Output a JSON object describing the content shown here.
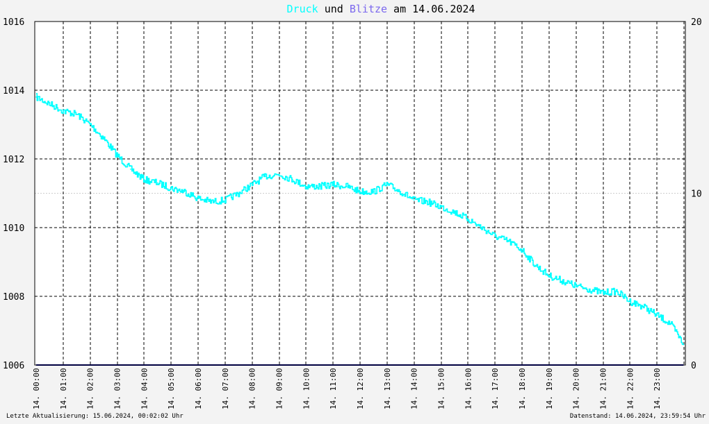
{
  "title": {
    "part1": "Druck",
    "part2": " und ",
    "part3": "Blitze",
    "part4": " am 14.06.2024",
    "color_druck": "#00ffff",
    "color_blitze": "#7b68ee",
    "color_text": "#000000"
  },
  "footer": {
    "left": "Letzte Aktualisierung: 15.06.2024, 00:02:02 Uhr",
    "right": "Datenstand: 14.06.2024, 23:59:54 Uhr"
  },
  "chart_data": {
    "type": "line",
    "title": "Druck und Blitze am 14.06.2024",
    "xlabel": "",
    "ylabel": "",
    "y_left": {
      "min": 1006,
      "max": 1016,
      "ticks": [
        "1006",
        "1008",
        "1010",
        "1012",
        "1014",
        "1016"
      ]
    },
    "y_right": {
      "min": 0,
      "max": 20,
      "ticks": [
        "0",
        "10",
        "20"
      ]
    },
    "x_ticks": [
      "14. 00:00",
      "14. 01:00",
      "14. 02:00",
      "14. 03:00",
      "14. 04:00",
      "14. 05:00",
      "14. 06:00",
      "14. 07:00",
      "14. 08:00",
      "14. 09:00",
      "14. 10:00",
      "14. 11:00",
      "14. 12:00",
      "14. 13:00",
      "14. 14:00",
      "14. 15:00",
      "14. 16:00",
      "14. 17:00",
      "14. 18:00",
      "14. 19:00",
      "14. 20:00",
      "14. 21:00",
      "14. 22:00",
      "14. 23:00"
    ],
    "grid": true,
    "series": [
      {
        "name": "Druck",
        "axis": "left",
        "color": "#00ffff",
        "x": [
          "00:00",
          "00:30",
          "01:00",
          "01:30",
          "02:00",
          "02:30",
          "03:00",
          "03:30",
          "04:00",
          "04:30",
          "05:00",
          "05:30",
          "06:00",
          "06:30",
          "07:00",
          "07:30",
          "08:00",
          "08:30",
          "09:00",
          "09:30",
          "10:00",
          "10:30",
          "11:00",
          "11:30",
          "12:00",
          "12:30",
          "13:00",
          "13:30",
          "14:00",
          "14:30",
          "15:00",
          "15:30",
          "16:00",
          "16:30",
          "17:00",
          "17:30",
          "18:00",
          "18:30",
          "19:00",
          "19:30",
          "20:00",
          "20:30",
          "21:00",
          "21:30",
          "22:00",
          "22:30",
          "23:00",
          "23:30",
          "23:59"
        ],
        "values": [
          1013.8,
          1013.6,
          1013.4,
          1013.3,
          1013.0,
          1012.6,
          1012.1,
          1011.7,
          1011.4,
          1011.3,
          1011.15,
          1011.05,
          1010.85,
          1010.75,
          1010.8,
          1011.0,
          1011.25,
          1011.5,
          1011.55,
          1011.4,
          1011.2,
          1011.2,
          1011.25,
          1011.2,
          1011.05,
          1011.05,
          1011.25,
          1011.05,
          1010.8,
          1010.75,
          1010.6,
          1010.45,
          1010.25,
          1010.0,
          1009.75,
          1009.6,
          1009.35,
          1008.9,
          1008.6,
          1008.45,
          1008.3,
          1008.2,
          1008.1,
          1008.15,
          1007.85,
          1007.7,
          1007.45,
          1007.2,
          1006.6
        ]
      },
      {
        "name": "Blitze",
        "axis": "right",
        "color": "#000080",
        "x": [
          "00:00",
          "23:59"
        ],
        "values": [
          0,
          0
        ]
      }
    ]
  }
}
